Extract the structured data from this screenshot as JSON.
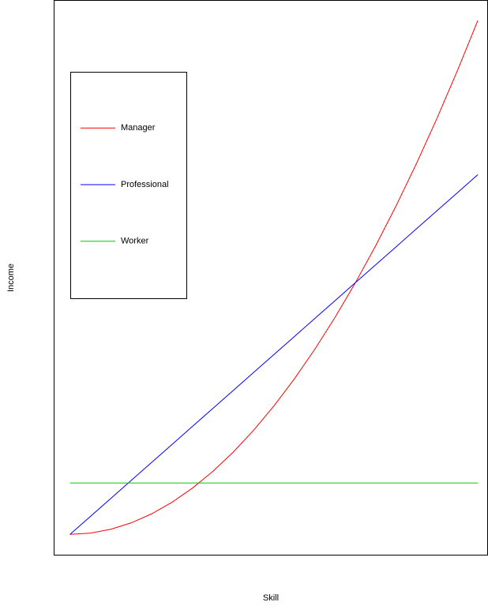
{
  "chart_data": {
    "type": "line",
    "x_label": "Skill",
    "y_label": "Income",
    "x": [
      0,
      0.05,
      0.1,
      0.15,
      0.2,
      0.25,
      0.3,
      0.35,
      0.4,
      0.45,
      0.5,
      0.55,
      0.6,
      0.65,
      0.7,
      0.75,
      0.8,
      0.85,
      0.9,
      0.95,
      1
    ],
    "series": [
      {
        "name": "Manager",
        "color": "#ff0000",
        "values": [
          0,
          0.0025,
          0.01,
          0.0225,
          0.04,
          0.0625,
          0.09,
          0.1225,
          0.16,
          0.2025,
          0.25,
          0.3025,
          0.36,
          0.4225,
          0.49,
          0.5625,
          0.64,
          0.7225,
          0.81,
          0.9025,
          1
        ]
      },
      {
        "name": "Professional",
        "color": "#0000ff",
        "values": [
          0,
          0.035,
          0.07,
          0.105,
          0.14,
          0.175,
          0.21,
          0.245,
          0.28,
          0.315,
          0.35,
          0.385,
          0.42,
          0.455,
          0.49,
          0.525,
          0.56,
          0.595,
          0.63,
          0.665,
          0.7
        ]
      },
      {
        "name": "Worker",
        "color": "#00cc00",
        "values": [
          0.1,
          0.1,
          0.1,
          0.1,
          0.1,
          0.1,
          0.1,
          0.1,
          0.1,
          0.1,
          0.1,
          0.1,
          0.1,
          0.1,
          0.1,
          0.1,
          0.1,
          0.1,
          0.1,
          0.1,
          0.1
        ]
      }
    ],
    "xlim": [
      -0.04,
      1.025
    ],
    "ylim": [
      -0.041,
      1.04
    ],
    "legend": "upper left"
  }
}
